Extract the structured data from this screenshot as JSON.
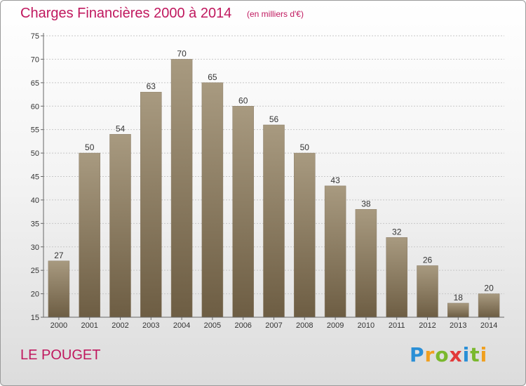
{
  "title": "Charges Financières 2000 à 2014",
  "subtitle": "(en milliers d'€)",
  "commune": "LE POUGET",
  "logo": {
    "letters": [
      "P",
      "r",
      "o",
      "x",
      "i",
      "t",
      "i"
    ],
    "colors": [
      "#2a8fd6",
      "#f0a020",
      "#7ab82e",
      "#e23a3a",
      "#2a8fd6",
      "#7ab82e",
      "#f0a020"
    ]
  },
  "colors": {
    "bar_top": "#a89a80",
    "bar_bottom": "#6d5d43",
    "title": "#c0185e"
  },
  "chart_data": {
    "type": "bar",
    "title": "Charges Financières 2000 à 2014",
    "subtitle": "(en milliers d'€)",
    "categories": [
      "2000",
      "2001",
      "2002",
      "2003",
      "2004",
      "2005",
      "2006",
      "2007",
      "2008",
      "2009",
      "2010",
      "2011",
      "2012",
      "2013",
      "2014"
    ],
    "values": [
      27,
      50,
      54,
      63,
      70,
      65,
      60,
      56,
      50,
      43,
      38,
      32,
      26,
      18,
      20
    ],
    "ylim": [
      15,
      75
    ],
    "yticks": [
      15,
      20,
      25,
      30,
      35,
      40,
      45,
      50,
      55,
      60,
      65,
      70,
      75
    ],
    "grid": true
  }
}
